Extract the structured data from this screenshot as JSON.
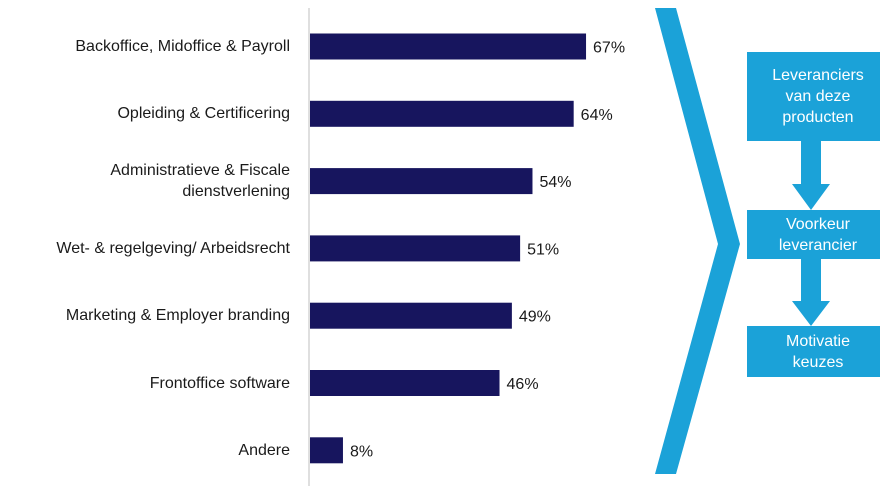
{
  "chart_data": {
    "type": "bar",
    "orientation": "horizontal",
    "categories": [
      "Backoffice, Midoffice & Payroll",
      "Opleiding & Certificering",
      "Administratieve & Fiscale\ndienstverlening",
      "Wet- & regelgeving/ Arbeidsrecht",
      "Marketing & Employer branding",
      "Frontoffice software",
      "Andere"
    ],
    "values": [
      67,
      64,
      54,
      51,
      49,
      46,
      8
    ],
    "value_labels": [
      "67%",
      "64%",
      "54%",
      "51%",
      "49%",
      "46%",
      "8%"
    ],
    "xlim": [
      0,
      100
    ],
    "bar_color": "#17155e",
    "grid": false
  },
  "flow": {
    "color": "#1ba2d8",
    "steps": [
      "Leveranciers\nvan deze\nproducten",
      "Voorkeur\nleverancier",
      "Motivatie\nkeuzes"
    ]
  }
}
